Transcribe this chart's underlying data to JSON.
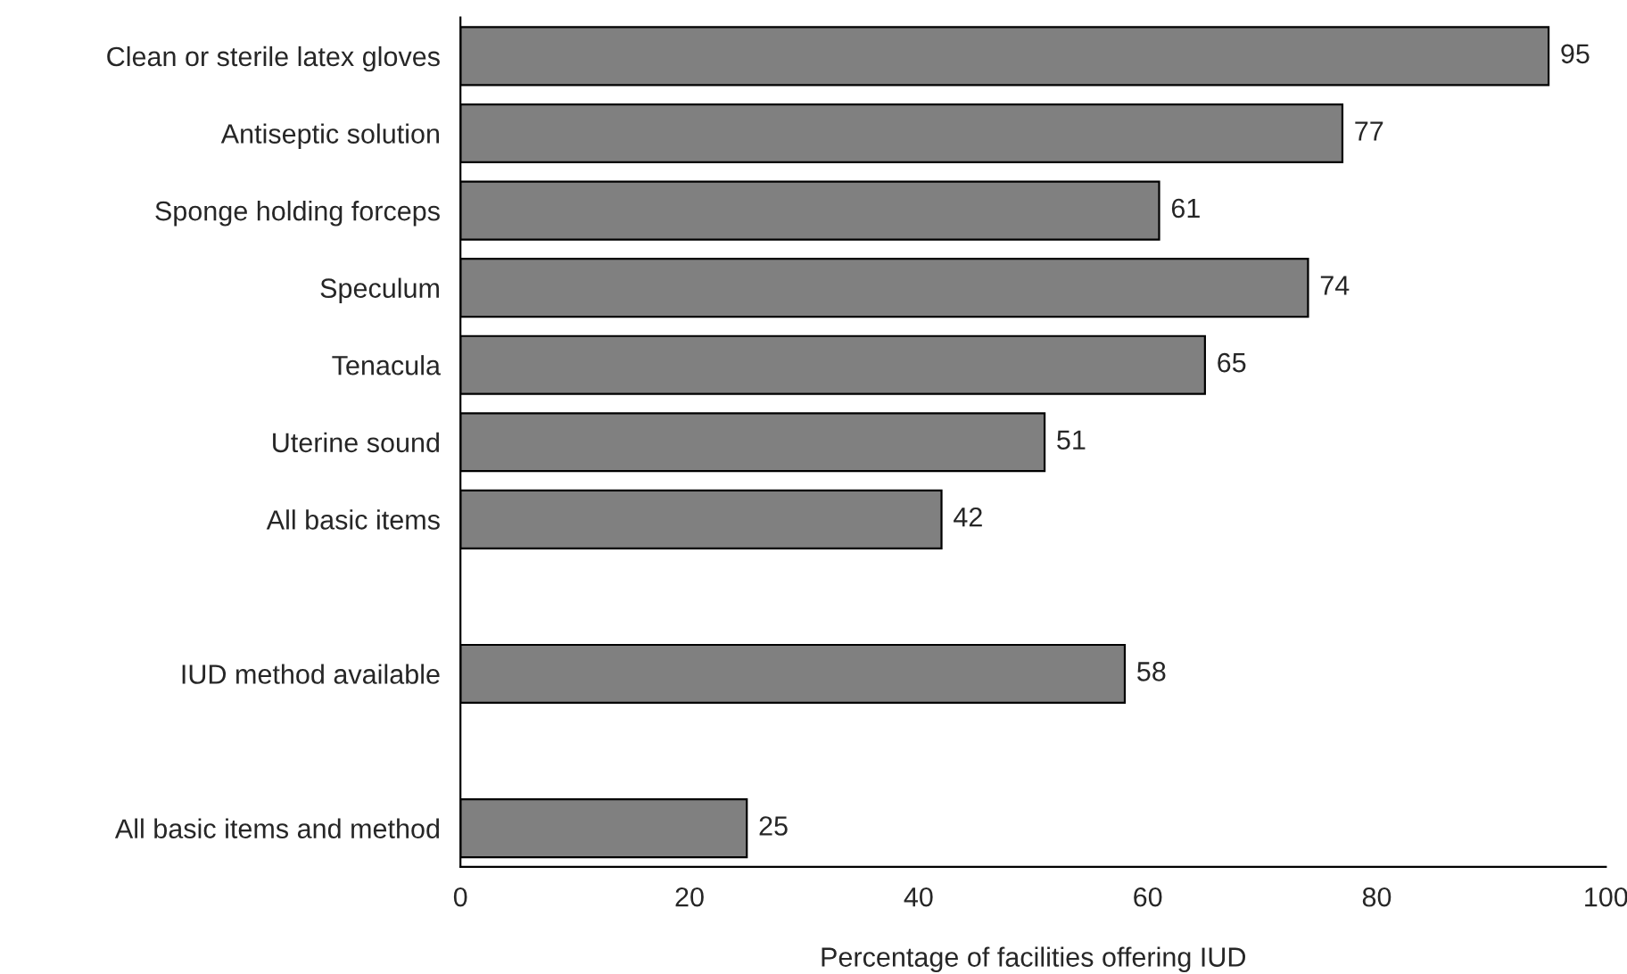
{
  "chart_data": {
    "type": "bar",
    "orientation": "horizontal",
    "xlabel": "Percentage of facilities offering IUD",
    "categories": [
      "Clean or sterile latex gloves",
      "Antiseptic solution",
      "Sponge holding forceps",
      "Speculum",
      "Tenacula",
      "Uterine sound",
      "All basic items",
      null,
      "IUD method available",
      null,
      "All basic items and method"
    ],
    "values": [
      95,
      77,
      61,
      74,
      65,
      51,
      42,
      null,
      58,
      null,
      25
    ],
    "color": "#808080",
    "xlim": [
      0,
      100
    ],
    "xticks": [
      0,
      20,
      40,
      60,
      80,
      100
    ],
    "data_labels": true,
    "grid": false,
    "legend": false
  }
}
